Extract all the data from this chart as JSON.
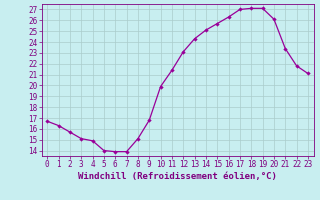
{
  "x": [
    0,
    1,
    2,
    3,
    4,
    5,
    6,
    7,
    8,
    9,
    10,
    11,
    12,
    13,
    14,
    15,
    16,
    17,
    18,
    19,
    20,
    21,
    22,
    23
  ],
  "y": [
    16.7,
    16.3,
    15.7,
    15.1,
    14.9,
    14.0,
    13.9,
    13.9,
    15.1,
    16.8,
    19.9,
    21.4,
    23.1,
    24.3,
    25.1,
    25.7,
    26.3,
    27.0,
    27.1,
    27.1,
    26.1,
    23.4,
    21.8,
    21.1
  ],
  "line_color": "#990099",
  "marker": "D",
  "marker_size": 2.2,
  "bg_color": "#c8eef0",
  "grid_color": "#aacccc",
  "xlabel": "Windchill (Refroidissement éolien,°C)",
  "ylim": [
    13.5,
    27.5
  ],
  "xlim": [
    -0.5,
    23.5
  ],
  "yticks": [
    14,
    15,
    16,
    17,
    18,
    19,
    20,
    21,
    22,
    23,
    24,
    25,
    26,
    27
  ],
  "xticks": [
    0,
    1,
    2,
    3,
    4,
    5,
    6,
    7,
    8,
    9,
    10,
    11,
    12,
    13,
    14,
    15,
    16,
    17,
    18,
    19,
    20,
    21,
    22,
    23
  ],
  "tick_fontsize": 5.5,
  "label_fontsize": 6.5,
  "tick_color": "#800080",
  "label_color": "#800080"
}
